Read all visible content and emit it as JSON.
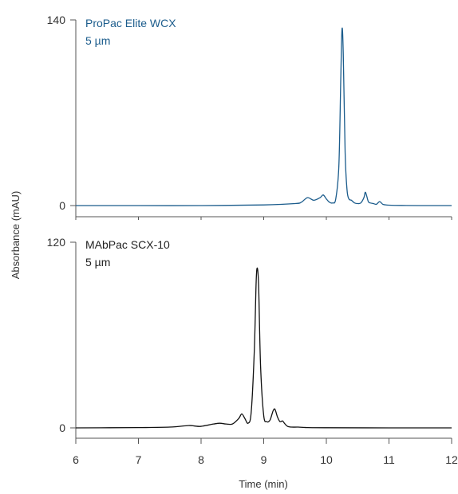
{
  "chart_data": {
    "type": "line",
    "shared_x_axis": {
      "label": "Time (min)",
      "range": [
        6,
        12
      ],
      "ticks": [
        "6",
        "7",
        "8",
        "9",
        "10",
        "11",
        "12"
      ]
    },
    "y_axis_label": "Absorbance (mAU)",
    "grid": false,
    "panels": [
      {
        "label_line1": "ProPac Elite WCX",
        "label_line2": "5 µm",
        "color": "#1b5c8c",
        "ylim": [
          0,
          140
        ],
        "y_ticks": [
          "140",
          "0"
        ],
        "x": [
          6.0,
          7.0,
          8.0,
          9.0,
          9.5,
          9.6,
          9.7,
          9.8,
          9.9,
          9.95,
          10.0,
          10.05,
          10.1,
          10.15,
          10.2,
          10.23,
          10.25,
          10.27,
          10.3,
          10.33,
          10.36,
          10.4,
          10.45,
          10.5,
          10.55,
          10.6,
          10.62,
          10.64,
          10.67,
          10.7,
          10.75,
          10.8,
          10.85,
          10.9,
          10.95,
          11.0,
          11.2,
          11.5,
          12.0
        ],
        "y": [
          0,
          0,
          0,
          0.5,
          1.5,
          2.5,
          6.0,
          4.0,
          6.0,
          8.0,
          5.0,
          2.5,
          2.0,
          5.0,
          30.0,
          95.0,
          133.0,
          115.0,
          40.0,
          12.0,
          5.0,
          4.0,
          2.0,
          1.5,
          2.0,
          6.0,
          10.0,
          8.0,
          3.0,
          2.0,
          1.5,
          1.0,
          3.0,
          1.0,
          0.5,
          0.3,
          0.1,
          0,
          0
        ]
      },
      {
        "label_line1": "MAbPac SCX-10",
        "label_line2": "5 µm",
        "color": "#111111",
        "ylim": [
          0,
          120
        ],
        "y_ticks": [
          "120",
          "0"
        ],
        "x": [
          6.0,
          7.0,
          7.5,
          7.8,
          7.9,
          8.0,
          8.2,
          8.3,
          8.4,
          8.5,
          8.6,
          8.65,
          8.7,
          8.75,
          8.8,
          8.85,
          8.88,
          8.9,
          8.92,
          8.95,
          9.0,
          9.05,
          9.1,
          9.15,
          9.18,
          9.22,
          9.26,
          9.3,
          9.33,
          9.38,
          9.45,
          9.55,
          9.7,
          10.0,
          11.0,
          12.0
        ],
        "y": [
          0,
          0.2,
          0.5,
          1.5,
          1.2,
          1.0,
          2.5,
          3.0,
          2.5,
          2.5,
          6.0,
          9.0,
          6.0,
          3.0,
          10.0,
          50.0,
          95.0,
          103.0,
          90.0,
          40.0,
          8.0,
          4.0,
          5.0,
          11.0,
          12.0,
          7.0,
          4.0,
          4.5,
          3.0,
          1.0,
          0.5,
          0.5,
          0.2,
          0.1,
          0,
          0
        ]
      }
    ]
  }
}
